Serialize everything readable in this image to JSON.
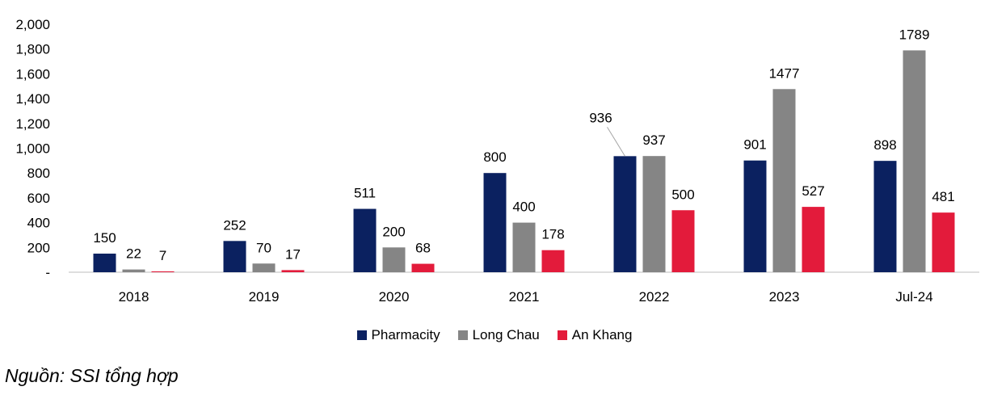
{
  "chart_data": {
    "type": "bar",
    "categories": [
      "2018",
      "2019",
      "2020",
      "2021",
      "2022",
      "2023",
      "Jul-24"
    ],
    "series": [
      {
        "name": "Pharmacity",
        "color": "#0b2160",
        "values": [
          150,
          252,
          511,
          800,
          936,
          901,
          898
        ]
      },
      {
        "name": "Long Chau",
        "color": "#858585",
        "values": [
          22,
          70,
          200,
          400,
          937,
          1477,
          1789
        ]
      },
      {
        "name": "An Khang",
        "color": "#e31b3b",
        "values": [
          7,
          17,
          68,
          178,
          500,
          527,
          481
        ]
      }
    ],
    "data_labels": [
      [
        "150",
        "252",
        "511",
        "800",
        "936",
        "901",
        "898"
      ],
      [
        "22",
        "70",
        "200",
        "400",
        "937",
        "1477",
        "1789"
      ],
      [
        "7",
        "17",
        "68",
        "178",
        "500",
        "527",
        "481"
      ]
    ],
    "y_ticks": [
      "-",
      "200",
      "400",
      "600",
      "800",
      "1,000",
      "1,200",
      "1,400",
      "1,600",
      "1,800",
      "2,000"
    ],
    "ylim": [
      0,
      2000
    ],
    "grid": false,
    "legend_position": "bottom",
    "title": "",
    "xlabel": "",
    "ylabel": ""
  },
  "legend": [
    "Pharmacity",
    "Long Chau",
    "An Khang"
  ],
  "source_note": "Nguồn: SSI tổng hợp"
}
